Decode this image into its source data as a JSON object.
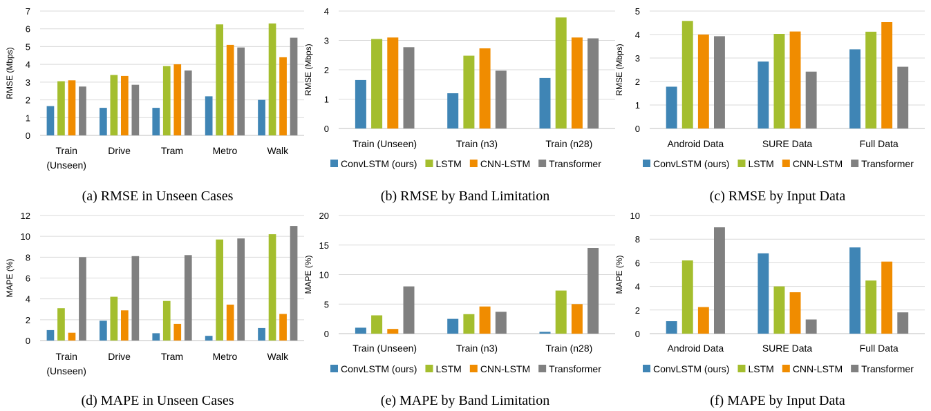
{
  "series_colors": {
    "ConvLSTM (ours)": "#3F85B5",
    "LSTM": "#A4BE2E",
    "CNN-LSTM": "#F08C00",
    "Transformer": "#808080"
  },
  "chart_data": [
    {
      "type": "bar",
      "caption": "(a) RMSE in Unseen Cases",
      "ylabel": "RMSE (Mbps)",
      "ylim": [
        0,
        7
      ],
      "yticks": [
        0,
        1,
        2,
        3,
        4,
        5,
        6,
        7
      ],
      "categories": [
        [
          "Train",
          "(Unseen)"
        ],
        [
          "Drive"
        ],
        [
          "Tram"
        ],
        [
          "Metro"
        ],
        [
          "Walk"
        ]
      ],
      "legend": false,
      "series": [
        {
          "name": "ConvLSTM (ours)",
          "values": [
            1.65,
            1.55,
            1.55,
            2.2,
            2.0
          ]
        },
        {
          "name": "LSTM",
          "values": [
            3.05,
            3.4,
            3.9,
            6.25,
            6.3
          ]
        },
        {
          "name": "CNN-LSTM",
          "values": [
            3.1,
            3.35,
            4.0,
            5.1,
            4.4
          ]
        },
        {
          "name": "Transformer",
          "values": [
            2.75,
            2.85,
            3.65,
            4.95,
            5.5
          ]
        }
      ]
    },
    {
      "type": "bar",
      "caption": "(b) RMSE by Band Limitation",
      "ylabel": "RMSE (Mbps)",
      "ylim": [
        0,
        4
      ],
      "yticks": [
        0,
        1,
        2,
        3,
        4
      ],
      "categories": [
        [
          "Train (Unseen)"
        ],
        [
          "Train (n3)"
        ],
        [
          "Train (n28)"
        ]
      ],
      "legend": true,
      "series": [
        {
          "name": "ConvLSTM (ours)",
          "values": [
            1.65,
            1.2,
            1.72
          ]
        },
        {
          "name": "LSTM",
          "values": [
            3.05,
            2.48,
            3.78
          ]
        },
        {
          "name": "CNN-LSTM",
          "values": [
            3.1,
            2.73,
            3.1
          ]
        },
        {
          "name": "Transformer",
          "values": [
            2.77,
            1.97,
            3.07
          ]
        }
      ]
    },
    {
      "type": "bar",
      "caption": "(c) RMSE by Input Data",
      "ylabel": "RMSE (Mbps)",
      "ylim": [
        0,
        5
      ],
      "yticks": [
        0,
        1,
        2,
        3,
        4,
        5
      ],
      "categories": [
        [
          "Android Data"
        ],
        [
          "SURE Data"
        ],
        [
          "Full Data"
        ]
      ],
      "legend": true,
      "series": [
        {
          "name": "ConvLSTM (ours)",
          "values": [
            1.78,
            2.85,
            3.37
          ]
        },
        {
          "name": "LSTM",
          "values": [
            4.58,
            4.03,
            4.12
          ]
        },
        {
          "name": "CNN-LSTM",
          "values": [
            4.0,
            4.13,
            4.53
          ]
        },
        {
          "name": "Transformer",
          "values": [
            3.93,
            2.42,
            2.63
          ]
        }
      ]
    },
    {
      "type": "bar",
      "caption": "(d) MAPE in Unseen Cases",
      "ylabel": "MAPE (%)",
      "ylim": [
        0,
        12
      ],
      "yticks": [
        0,
        2,
        4,
        6,
        8,
        10,
        12
      ],
      "categories": [
        [
          "Train",
          "(Unseen)"
        ],
        [
          "Drive"
        ],
        [
          "Tram"
        ],
        [
          "Metro"
        ],
        [
          "Walk"
        ]
      ],
      "legend": false,
      "series": [
        {
          "name": "ConvLSTM (ours)",
          "values": [
            1.0,
            1.9,
            0.7,
            0.45,
            1.2
          ]
        },
        {
          "name": "LSTM",
          "values": [
            3.1,
            4.2,
            3.8,
            9.7,
            10.2
          ]
        },
        {
          "name": "CNN-LSTM",
          "values": [
            0.75,
            2.9,
            1.6,
            3.45,
            2.55
          ]
        },
        {
          "name": "Transformer",
          "values": [
            8.0,
            8.1,
            8.2,
            9.8,
            11.0
          ]
        }
      ]
    },
    {
      "type": "bar",
      "caption": "(e) MAPE by Band Limitation",
      "ylabel": "MAPE (%)",
      "ylim": [
        0,
        20
      ],
      "yticks": [
        0,
        5,
        10,
        15,
        20
      ],
      "categories": [
        [
          "Train (Unseen)"
        ],
        [
          "Train (n3)"
        ],
        [
          "Train (n28)"
        ]
      ],
      "legend": true,
      "series": [
        {
          "name": "ConvLSTM (ours)",
          "values": [
            1.0,
            2.5,
            0.3
          ]
        },
        {
          "name": "LSTM",
          "values": [
            3.1,
            3.3,
            7.3
          ]
        },
        {
          "name": "CNN-LSTM",
          "values": [
            0.8,
            4.6,
            5.0
          ]
        },
        {
          "name": "Transformer",
          "values": [
            8.0,
            3.7,
            14.5
          ]
        }
      ]
    },
    {
      "type": "bar",
      "caption": "(f) MAPE by Input Data",
      "ylabel": "MAPE (%)",
      "ylim": [
        0,
        10
      ],
      "yticks": [
        0,
        2,
        4,
        6,
        8,
        10
      ],
      "categories": [
        [
          "Android Data"
        ],
        [
          "SURE Data"
        ],
        [
          "Full Data"
        ]
      ],
      "legend": true,
      "series": [
        {
          "name": "ConvLSTM (ours)",
          "values": [
            1.05,
            6.8,
            7.3
          ]
        },
        {
          "name": "LSTM",
          "values": [
            6.2,
            4.0,
            4.5
          ]
        },
        {
          "name": "CNN-LSTM",
          "values": [
            2.25,
            3.5,
            6.1
          ]
        },
        {
          "name": "Transformer",
          "values": [
            9.0,
            1.2,
            1.8
          ]
        }
      ]
    }
  ]
}
